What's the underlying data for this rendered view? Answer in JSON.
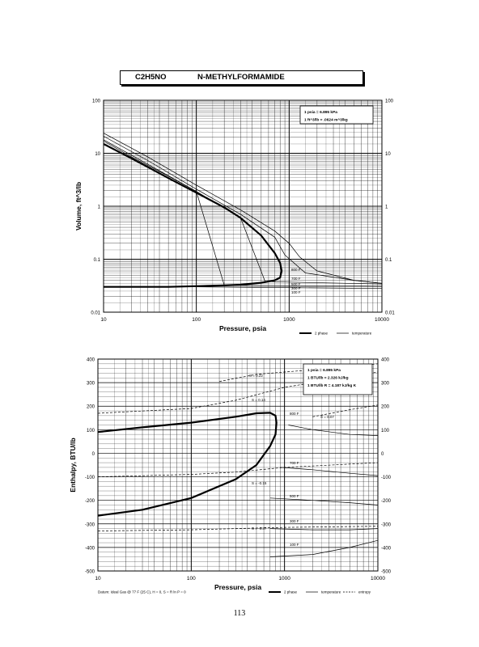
{
  "header": {
    "formula": "C2H5NO",
    "name": "N-METHYLFORMAMIDE"
  },
  "page_number": "113",
  "chart_data": [
    {
      "type": "line",
      "xscale": "log",
      "yscale": "log",
      "xlim": [
        10,
        10000
      ],
      "ylim": [
        0.01,
        100
      ],
      "xlabel": "Pressure,  psia",
      "ylabel": "Volume, ft^3/lb",
      "x_ticks": [
        "10",
        "100",
        "1000",
        "10000"
      ],
      "y_ticks": [
        "0.01",
        "0.1",
        "1",
        "10",
        "100"
      ],
      "right_y_ticks": [
        "0.01",
        "0.1",
        "1",
        "10",
        "100"
      ],
      "conversion_box": [
        "1 psia = 6.895 kPa",
        "1 ft^3/lb = .0624 m^3/kg"
      ],
      "legend": [
        {
          "label": "2 phase",
          "style": "thick"
        },
        {
          "label": "temperature",
          "style": "thin"
        }
      ],
      "series": [
        {
          "name": "2 phase",
          "style": "thick",
          "x": [
            10,
            20,
            50,
            100,
            200,
            300,
            500,
            700,
            800,
            830,
            800,
            700,
            500,
            300,
            200,
            100,
            50,
            20,
            10
          ],
          "y": [
            15,
            8,
            3.4,
            1.8,
            0.95,
            0.6,
            0.28,
            0.13,
            0.085,
            0.06,
            0.045,
            0.04,
            0.036,
            0.033,
            0.032,
            0.031,
            0.03,
            0.03,
            0.03
          ]
        }
      ],
      "isotherms": [
        {
          "label": "800 F",
          "x": [
            10,
            30,
            100,
            300,
            700,
            1000,
            1300,
            2000,
            5000,
            10000
          ],
          "y": [
            24,
            8.5,
            2.5,
            0.85,
            0.34,
            0.2,
            0.11,
            0.06,
            0.04,
            0.035
          ]
        },
        {
          "label": "700 F",
          "x": [
            10,
            30,
            100,
            300,
            700,
            900,
            1500,
            5000,
            10000
          ],
          "y": [
            21,
            7.3,
            2.1,
            0.7,
            0.26,
            0.12,
            0.055,
            0.04,
            0.035
          ]
        },
        {
          "label": "500 F",
          "x": [
            10,
            30,
            100,
            300,
            550,
            1000,
            10000
          ],
          "y": [
            18,
            6.2,
            1.9,
            0.6,
            0.038,
            0.037,
            0.034
          ]
        },
        {
          "label": "300 F",
          "x": [
            10,
            20,
            50,
            100,
            200,
            300,
            10000
          ],
          "y": [
            17,
            8.5,
            3.7,
            1.9,
            0.032,
            0.032,
            0.031
          ]
        },
        {
          "label": "100 F",
          "x": [
            10,
            100,
            1000,
            10000
          ],
          "y": [
            0.03,
            0.03,
            0.029,
            0.028
          ]
        }
      ],
      "temperature_labels": [
        "800 F",
        "700 F",
        "500 F",
        "300 F",
        "100 F"
      ]
    },
    {
      "type": "line",
      "xscale": "log",
      "yscale": "linear",
      "xlim": [
        10,
        10000
      ],
      "ylim": [
        -500,
        400
      ],
      "xlabel": "Pressure,  psia",
      "ylabel": "Enthalpy, BTU/lb",
      "x_ticks": [
        "10",
        "100",
        "1000",
        "10000"
      ],
      "y_ticks": [
        "-500",
        "-400",
        "-300",
        "-200",
        "-100",
        "0",
        "100",
        "200",
        "300",
        "400"
      ],
      "right_y_ticks": [
        "-500",
        "-400",
        "-300",
        "-200",
        "-100",
        "0",
        "100",
        "200",
        "300",
        "400"
      ],
      "conversion_box": [
        "1 psia = 6.895 kPa",
        "1 BTU/lb = 2.326 kJ/kg",
        "1 BTU/lb R = 4.187 kJ/kg K"
      ],
      "legend": [
        {
          "label": "2 phase",
          "style": "thick"
        },
        {
          "label": "temperature",
          "style": "thin"
        },
        {
          "label": "entropy",
          "style": "dashed"
        }
      ],
      "footnote": "Datum: Ideal Gas @ 77 F (25 C),  H = 0,  S = R ln P = 0",
      "series": [
        {
          "name": "2 phase",
          "style": "thick",
          "x": [
            10,
            30,
            100,
            300,
            500,
            700,
            800,
            820,
            800,
            700,
            500,
            300,
            100,
            30,
            10
          ],
          "y": [
            90,
            110,
            130,
            155,
            170,
            172,
            160,
            130,
            80,
            30,
            -50,
            -110,
            -190,
            -240,
            -265
          ]
        }
      ],
      "isotherms": [
        {
          "label": "800 F",
          "x": [
            1100,
            2000,
            5000,
            10000
          ],
          "y": [
            120,
            100,
            80,
            75
          ]
        },
        {
          "label": "700 F",
          "x": [
            900,
            2000,
            5000,
            10000
          ],
          "y": [
            -60,
            -70,
            -85,
            -95
          ]
        },
        {
          "label": "500 F",
          "x": [
            700,
            2000,
            5000,
            10000
          ],
          "y": [
            -190,
            -200,
            -210,
            -220
          ]
        },
        {
          "label": "300 F",
          "x": [
            700,
            2000,
            5000,
            10000
          ],
          "y": [
            -320,
            -325,
            -325,
            -320
          ]
        },
        {
          "label": "100 F",
          "x": [
            700,
            2000,
            5000,
            10000
          ],
          "y": [
            -440,
            -430,
            -400,
            -370
          ]
        }
      ],
      "entropy_lines": [
        {
          "label": "S = 0.22",
          "x": [
            200,
            500,
            1000,
            3000,
            10000
          ],
          "y": [
            305,
            335,
            345,
            360,
            380
          ]
        },
        {
          "label": "S = 0.14",
          "x": [
            10,
            100,
            300,
            1000,
            10000
          ],
          "y": [
            170,
            190,
            225,
            280,
            345
          ]
        },
        {
          "label": "S = 0.07",
          "x": [
            2000,
            5000,
            10000
          ],
          "y": [
            155,
            185,
            205
          ]
        },
        {
          "label": "S = -0.15",
          "x": [
            10,
            100,
            300,
            1000,
            10000
          ],
          "y": [
            -100,
            -90,
            -80,
            -60,
            -40
          ]
        },
        {
          "label": "S = -0.37",
          "x": [
            10,
            100,
            300,
            1000,
            10000
          ],
          "y": [
            -330,
            -325,
            -320,
            -315,
            -310
          ]
        }
      ],
      "entropy_labels": [
        "S = 0.22",
        "S = 0.14",
        "S = 0.07",
        "S = -0.15",
        "S = -0.37"
      ],
      "temperature_labels": [
        "800 F",
        "700 F",
        "500 F",
        "300 F",
        "100 F"
      ]
    }
  ]
}
